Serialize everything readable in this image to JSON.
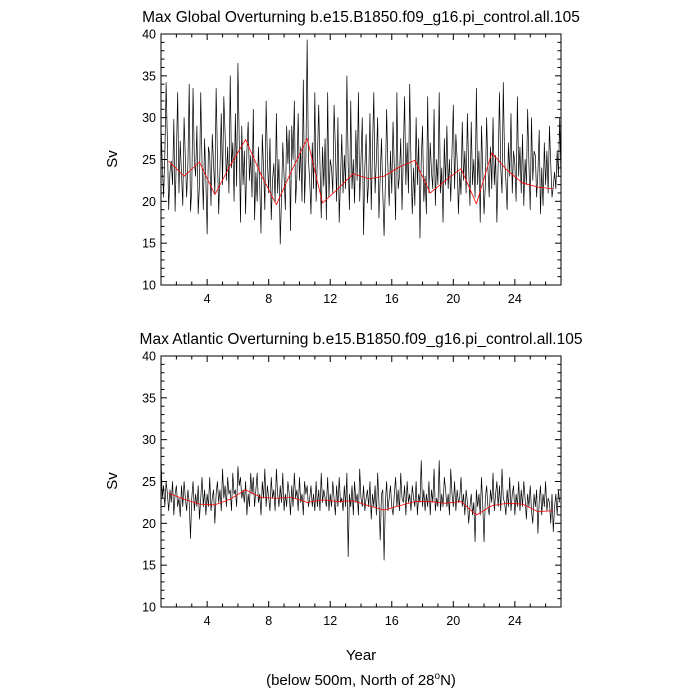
{
  "chart_data": [
    {
      "type": "line",
      "title": "Max Global Overturning b.e15.B1850.f09_g16.pi_control.all.105",
      "ylabel": "Sv",
      "xlabel": "",
      "xlim": [
        1,
        27
      ],
      "ylim": [
        10,
        40
      ],
      "xticks": [
        4,
        8,
        12,
        16,
        20,
        24
      ],
      "yticks": [
        10,
        15,
        20,
        25,
        30,
        35,
        40
      ],
      "colors": {
        "monthly": "#000000",
        "annual": "#ff0000"
      },
      "series": [
        {
          "values_desc": "monthly",
          "x_start": 1,
          "x_step": 0.08333,
          "values": [
            29.0,
            24.5,
            20.5,
            25.5,
            34.2,
            27.0,
            19.0,
            23.5,
            24.8,
            22.0,
            29.8,
            18.8,
            25.5,
            33.0,
            21.0,
            27.2,
            23.2,
            19.5,
            30.0,
            25.0,
            20.5,
            24.5,
            34.0,
            18.8,
            21.5,
            33.5,
            25.0,
            23.0,
            29.0,
            18.5,
            22.0,
            33.0,
            24.5,
            19.0,
            27.5,
            22.5,
            16.1,
            26.5,
            25.5,
            19.5,
            28.0,
            24.5,
            21.0,
            33.5,
            25.5,
            18.5,
            23.8,
            30.5,
            22.0,
            32.5,
            28.0,
            22.5,
            26.5,
            21.0,
            35.0,
            24.0,
            27.0,
            20.0,
            30.5,
            21.8,
            36.5,
            27.5,
            17.5,
            29.0,
            22.0,
            26.0,
            18.5,
            26.0,
            29.5,
            22.5,
            25.5,
            20.5,
            31.0,
            17.8,
            23.5,
            20.0,
            26.5,
            22.0,
            16.2,
            28.0,
            24.0,
            19.0,
            32.0,
            25.0,
            21.0,
            27.5,
            17.8,
            22.5,
            24.5,
            20.0,
            30.5,
            21.0,
            25.0,
            14.9,
            20.5,
            27.0,
            23.0,
            19.0,
            29.0,
            24.5,
            28.5,
            16.5,
            29.0,
            25.0,
            32.0,
            19.8,
            23.0,
            30.5,
            22.5,
            26.5,
            20.0,
            34.5,
            19.8,
            25.0,
            39.3,
            25.0,
            22.5,
            18.5,
            27.0,
            21.5,
            33.0,
            20.0,
            25.0,
            31.5,
            24.5,
            18.0,
            26.5,
            21.8,
            27.5,
            17.8,
            33.0,
            20.5,
            25.0,
            24.0,
            21.0,
            31.5,
            26.5,
            20.0,
            30.0,
            17.5,
            22.5,
            28.0,
            21.0,
            25.5,
            21.5,
            35.0,
            24.5,
            19.0,
            32.0,
            21.5,
            25.0,
            19.8,
            28.5,
            22.5,
            33.0,
            20.0,
            25.0,
            30.0,
            16.0,
            24.0,
            28.0,
            19.8,
            22.5,
            30.5,
            19.0,
            26.5,
            33.0,
            21.0,
            25.0,
            30.0,
            18.0,
            23.0,
            27.5,
            21.0,
            15.9,
            22.0,
            31.0,
            24.0,
            19.5,
            26.0,
            21.0,
            29.5,
            24.0,
            17.8,
            33.0,
            21.5,
            23.0,
            27.5,
            19.0,
            25.5,
            32.5,
            22.0,
            27.0,
            21.0,
            34.0,
            24.5,
            18.5,
            24.0,
            19.5,
            30.0,
            22.0,
            27.5,
            15.6,
            25.0,
            29.0,
            20.0,
            23.0,
            18.5,
            32.5,
            21.0,
            27.0,
            23.5,
            21.5,
            31.0,
            19.5,
            25.0,
            22.0,
            33.0,
            21.0,
            24.0,
            17.5,
            27.5,
            22.0,
            29.0,
            21.5,
            25.0,
            20.0,
            26.0,
            31.5,
            21.5,
            28.0,
            25.0,
            18.5,
            23.5,
            20.8,
            29.5,
            22.5,
            26.0,
            21.0,
            30.5,
            24.0,
            19.5,
            29.5,
            22.0,
            25.0,
            20.5,
            33.5,
            22.0,
            26.0,
            17.5,
            29.0,
            23.5,
            18.5,
            22.0,
            30.0,
            24.0,
            20.5,
            26.5,
            21.5,
            30.0,
            22.0,
            25.5,
            17.5,
            24.5,
            33.0,
            24.0,
            21.0,
            34.2,
            25.0,
            22.5,
            19.0,
            27.0,
            23.0,
            30.5,
            21.0,
            26.0,
            24.5,
            20.0,
            32.5,
            23.0,
            26.5,
            21.0,
            28.0,
            19.5,
            25.0,
            22.0,
            31.0,
            24.5,
            19.0,
            30.0,
            22.5,
            26.0,
            25.5,
            20.5,
            23.5,
            28.5,
            18.5,
            24.0,
            19.5,
            27.0,
            22.0,
            26.0,
            21.0,
            29.0,
            24.5,
            20.5,
            21.8,
            23.5,
            21.5,
            26.0,
            23.0,
            30.0,
            22.5,
            31.0,
            27.0
          ]
        },
        {
          "values_desc": "annual",
          "x": [
            1.5,
            2.5,
            3.5,
            4.5,
            5.5,
            6.5,
            7.5,
            8.5,
            9.5,
            10.5,
            11.5,
            12.5,
            13.5,
            14.5,
            15.5,
            16.5,
            17.5,
            18.5,
            19.5,
            20.5,
            21.5,
            22.5,
            23.5,
            24.5,
            25.5,
            26.5
          ],
          "values": [
            24.8,
            23.0,
            24.7,
            20.8,
            24.3,
            27.4,
            23.2,
            19.6,
            23.7,
            27.5,
            19.8,
            21.5,
            23.3,
            22.7,
            23.0,
            24.1,
            24.9,
            21.0,
            22.5,
            23.9,
            19.7,
            25.8,
            23.7,
            22.2,
            21.7,
            21.5
          ]
        }
      ]
    },
    {
      "type": "line",
      "title": "Max Atlantic Overturning b.e15.B1850.f09_g16.pi_control.all.105",
      "ylabel": "Sv",
      "xlabel": "Year",
      "xlim": [
        1,
        27
      ],
      "ylim": [
        10,
        40
      ],
      "xticks": [
        4,
        8,
        12,
        16,
        20,
        24
      ],
      "yticks": [
        10,
        15,
        20,
        25,
        30,
        35,
        40
      ],
      "colors": {
        "monthly": "#000000",
        "annual": "#ff0000"
      },
      "series": [
        {
          "values_desc": "monthly",
          "x_start": 1,
          "x_step": 0.08333,
          "values": [
            28.0,
            23.0,
            24.5,
            22.0,
            25.0,
            23.5,
            21.5,
            24.0,
            22.5,
            25.0,
            21.0,
            23.5,
            24.5,
            22.0,
            23.0,
            20.8,
            24.5,
            22.0,
            25.0,
            23.0,
            21.5,
            24.0,
            22.5,
            18.2,
            23.0,
            25.0,
            21.5,
            23.5,
            22.0,
            24.5,
            20.5,
            23.0,
            25.5,
            22.0,
            24.0,
            21.0,
            23.5,
            22.0,
            25.5,
            21.5,
            23.0,
            24.0,
            20.0,
            23.5,
            25.0,
            22.5,
            24.0,
            21.5,
            26.5,
            23.0,
            24.5,
            22.0,
            25.5,
            23.5,
            24.0,
            21.5,
            26.0,
            23.5,
            24.0,
            22.0,
            26.8,
            24.5,
            25.5,
            23.0,
            24.0,
            22.5,
            25.0,
            21.0,
            23.5,
            22.0,
            26.0,
            23.5,
            25.5,
            22.0,
            24.0,
            26.0,
            22.5,
            23.5,
            21.0,
            25.0,
            23.0,
            26.5,
            22.0,
            24.5,
            23.0,
            21.5,
            25.5,
            23.0,
            24.0,
            21.5,
            26.5,
            23.5,
            22.0,
            24.5,
            22.5,
            26.0,
            21.5,
            23.5,
            22.0,
            25.0,
            23.5,
            21.0,
            24.5,
            22.0,
            26.0,
            23.0,
            24.0,
            21.5,
            25.5,
            22.5,
            23.5,
            21.0,
            25.0,
            23.5,
            24.5,
            22.0,
            23.0,
            24.5,
            22.0,
            23.5,
            21.5,
            25.0,
            22.0,
            24.0,
            21.5,
            26.0,
            22.5,
            24.0,
            23.0,
            22.0,
            25.5,
            21.5,
            23.5,
            22.0,
            25.0,
            23.0,
            21.0,
            24.5,
            22.0,
            25.5,
            22.5,
            23.0,
            21.5,
            24.5,
            22.0,
            26.0,
            16.0,
            23.5,
            22.0,
            24.5,
            21.0,
            25.0,
            22.5,
            23.5,
            21.0,
            26.5,
            23.0,
            22.0,
            24.5,
            21.5,
            23.0,
            24.0,
            22.0,
            25.0,
            20.5,
            23.5,
            22.0,
            24.5,
            21.0,
            26.0,
            22.5,
            18.0,
            23.5,
            24.0,
            15.6,
            22.5,
            25.0,
            21.5,
            23.0,
            24.5,
            22.0,
            21.0,
            23.5,
            25.5,
            22.0,
            24.0,
            21.5,
            26.0,
            23.0,
            22.5,
            24.5,
            21.0,
            25.0,
            22.5,
            23.5,
            21.5,
            24.5,
            23.0,
            22.0,
            25.0,
            21.0,
            23.5,
            22.5,
            27.5,
            22.0,
            24.0,
            21.5,
            23.5,
            22.0,
            25.0,
            21.0,
            24.0,
            22.5,
            26.5,
            21.5,
            23.0,
            22.0,
            27.5,
            21.5,
            23.5,
            22.0,
            25.5,
            24.0,
            22.0,
            23.5,
            21.0,
            26.5,
            23.5,
            22.0,
            25.0,
            21.5,
            24.0,
            22.5,
            23.0,
            25.5,
            22.0,
            23.5,
            21.0,
            24.0,
            22.5,
            20.0,
            22.0,
            23.5,
            21.0,
            22.5,
            17.8,
            24.0,
            22.0,
            23.5,
            21.0,
            25.5,
            22.0,
            17.8,
            23.0,
            24.5,
            22.0,
            21.0,
            24.0,
            22.5,
            26.0,
            21.5,
            23.5,
            25.0,
            22.0,
            24.5,
            21.5,
            26.5,
            23.0,
            22.5,
            21.0,
            24.0,
            22.0,
            25.5,
            21.5,
            23.5,
            24.5,
            21.0,
            23.5,
            22.0,
            25.0,
            21.5,
            24.0,
            22.0,
            25.0,
            23.0,
            20.5,
            23.5,
            22.0,
            24.5,
            21.5,
            20.0,
            23.5,
            22.0,
            24.0,
            18.8,
            22.5,
            24.5,
            21.0,
            23.5,
            22.0,
            25.0,
            21.5,
            23.0,
            22.5,
            20.0,
            23.5,
            19.0,
            22.0,
            23.5,
            21.0,
            24.0,
            22.5
          ]
        },
        {
          "values_desc": "annual",
          "x": [
            1.5,
            2.5,
            3.5,
            4.5,
            5.5,
            6.5,
            7.5,
            8.5,
            9.5,
            10.5,
            11.5,
            12.5,
            13.5,
            14.5,
            15.5,
            16.5,
            17.5,
            18.5,
            19.5,
            20.5,
            21.5,
            22.5,
            23.5,
            24.5,
            25.5,
            26.5
          ],
          "values": [
            23.6,
            22.9,
            22.3,
            22.2,
            22.9,
            24.0,
            23.1,
            23.0,
            23.1,
            22.5,
            22.8,
            22.6,
            22.7,
            22.1,
            21.6,
            22.1,
            22.6,
            22.6,
            22.4,
            22.6,
            21.0,
            22.1,
            22.4,
            22.3,
            21.4,
            21.5
          ]
        }
      ]
    }
  ],
  "footer": {
    "subtitle_prefix": "(below 500m, North of 28",
    "subtitle_sup": "o",
    "subtitle_suffix": "N)"
  }
}
